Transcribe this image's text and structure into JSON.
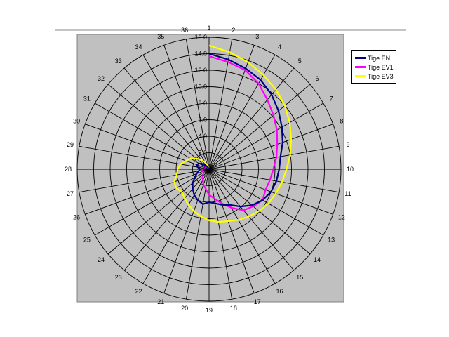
{
  "chart_data": {
    "type": "radar",
    "title": "",
    "categories": [
      "1",
      "2",
      "3",
      "4",
      "5",
      "6",
      "7",
      "8",
      "9",
      "10",
      "11",
      "12",
      "13",
      "14",
      "15",
      "16",
      "17",
      "18",
      "19",
      "20",
      "21",
      "22",
      "23",
      "24",
      "25",
      "26",
      "27",
      "28",
      "29",
      "30",
      "31",
      "32",
      "33",
      "34",
      "35",
      "36"
    ],
    "radial_ticks": [
      "0.0",
      "2.0",
      "4.0",
      "6.0",
      "8.0",
      "10.0",
      "12.0",
      "14.0",
      "16.0"
    ],
    "rlim": [
      0,
      16
    ],
    "grid": true,
    "legend_position": "right",
    "series": [
      {
        "name": "Tige EN",
        "color": "#000080",
        "values": [
          14.0,
          13.5,
          13.0,
          12.5,
          11.8,
          11.0,
          10.2,
          9.5,
          8.8,
          8.5,
          8.3,
          8.0,
          7.5,
          6.8,
          5.9,
          5.0,
          4.6,
          4.2,
          4.0,
          4.3,
          4.0,
          3.6,
          3.1,
          2.6,
          2.0,
          1.6,
          1.3,
          1.1,
          1.4,
          1.6,
          1.4,
          0.9,
          0.5,
          0.3,
          0.2,
          0.2
        ]
      },
      {
        "name": "Tige EV1",
        "color": "#ff00ff",
        "values": [
          13.7,
          13.2,
          12.8,
          12.0,
          11.0,
          10.2,
          9.5,
          8.8,
          8.3,
          7.8,
          7.5,
          7.3,
          7.5,
          7.0,
          6.5,
          5.4,
          4.4,
          3.6,
          3.1,
          2.4,
          2.0,
          1.5,
          1.2,
          0.9,
          0.8,
          0.8,
          0.9,
          0.7,
          0.6,
          0.6,
          0.5,
          0.4,
          0.3,
          0.2,
          0.2,
          0.2
        ]
      },
      {
        "name": "Tige EV3",
        "color": "#ffff00",
        "values": [
          15.0,
          14.4,
          13.8,
          13.2,
          12.6,
          12.0,
          11.3,
          10.6,
          10.0,
          9.4,
          9.0,
          8.6,
          8.3,
          7.9,
          7.5,
          7.1,
          6.7,
          6.5,
          6.2,
          5.8,
          5.4,
          5.0,
          4.6,
          4.3,
          4.6,
          4.5,
          4.0,
          3.8,
          3.5,
          3.0,
          2.6,
          2.0,
          1.5,
          1.0,
          0.5,
          0.2
        ]
      }
    ]
  }
}
